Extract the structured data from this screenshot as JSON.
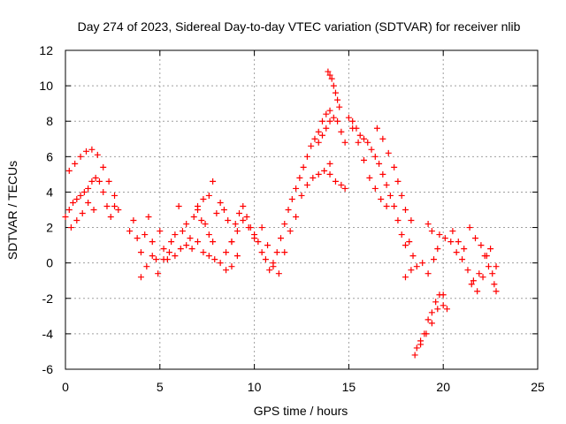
{
  "chart_data": {
    "type": "scatter",
    "title": "Day 274 of 2023, Sidereal Day-to-day VTEC variation (SDTVAR) for receiver nlib",
    "xlabel": "GPS time / hours",
    "ylabel": "SDTVAR / TECUs",
    "xlim": [
      0,
      25
    ],
    "ylim": [
      -6,
      12
    ],
    "xticks": [
      "0",
      "5",
      "10",
      "15",
      "20",
      "25"
    ],
    "yticks": [
      "-6",
      "-4",
      "-2",
      "0",
      "2",
      "4",
      "6",
      "8",
      "10",
      "12"
    ],
    "grid": true,
    "marker": "+",
    "color": "#ff0000",
    "series": [
      {
        "name": "SDTVAR",
        "x": [
          0.0,
          0.2,
          0.4,
          0.6,
          0.8,
          1.0,
          1.2,
          1.4,
          1.6,
          1.8,
          2.0,
          2.2,
          2.4,
          2.6,
          2.8,
          0.2,
          0.5,
          0.8,
          1.1,
          1.4,
          1.7,
          2.0,
          2.3,
          2.6,
          0.3,
          0.6,
          0.9,
          1.2,
          1.5,
          3.4,
          3.6,
          3.8,
          4.0,
          4.2,
          4.4,
          4.6,
          4.8,
          5.0,
          5.2,
          5.4,
          5.6,
          5.8,
          6.0,
          6.2,
          6.4,
          6.6,
          6.8,
          7.0,
          7.2,
          7.4,
          7.6,
          7.8,
          8.0,
          8.2,
          8.4,
          8.6,
          8.8,
          9.0,
          9.2,
          9.4,
          9.6,
          9.8,
          10.0,
          4.0,
          4.3,
          4.6,
          4.9,
          5.2,
          5.5,
          5.8,
          6.1,
          6.4,
          6.7,
          7.0,
          7.3,
          7.6,
          7.9,
          8.2,
          8.5,
          8.8,
          9.1,
          9.4,
          9.7,
          10.0,
          7.0,
          7.3,
          7.6,
          7.8,
          8.5,
          8.8,
          9.1,
          10.2,
          10.4,
          10.6,
          10.8,
          11.0,
          11.2,
          11.4,
          11.6,
          11.8,
          12.0,
          12.2,
          12.4,
          12.6,
          12.8,
          13.0,
          13.2,
          13.4,
          13.6,
          13.8,
          14.0,
          10.4,
          10.7,
          11.0,
          11.3,
          11.6,
          11.9,
          12.2,
          12.5,
          12.8,
          13.1,
          13.4,
          13.7,
          14.0,
          13.4,
          13.6,
          13.8,
          14.0,
          14.2,
          14.4,
          14.6,
          14.8,
          13.9,
          14.0,
          14.1,
          14.2,
          14.3,
          14.4,
          14.5,
          14.0,
          14.3,
          14.6,
          14.8,
          15.0,
          15.2,
          15.4,
          15.6,
          15.8,
          16.0,
          16.2,
          16.4,
          16.6,
          16.8,
          17.0,
          17.2,
          17.4,
          17.6,
          17.8,
          18.0,
          18.2,
          18.4,
          15.2,
          15.5,
          15.8,
          16.1,
          16.4,
          16.7,
          17.0,
          16.5,
          16.8,
          17.1,
          17.4,
          17.6,
          17.8,
          18.0,
          18.3,
          18.0,
          18.3,
          18.6,
          18.9,
          19.2,
          19.5,
          19.8,
          20.1,
          20.4,
          20.7,
          21.0,
          21.3,
          21.6,
          21.9,
          22.2,
          22.5,
          22.8,
          18.5,
          18.8,
          19.1,
          19.4,
          19.7,
          20.0,
          20.5,
          20.8,
          21.1,
          21.4,
          21.7,
          22.0,
          22.3,
          22.6,
          22.8,
          18.6,
          18.8,
          19.0,
          19.2,
          19.4,
          19.6,
          19.8,
          20.0,
          20.2,
          21.5,
          21.8,
          22.1,
          22.4,
          22.7,
          19.2,
          19.4,
          19.7
        ],
        "y": [
          2.6,
          3.0,
          3.4,
          3.6,
          3.8,
          4.0,
          4.2,
          4.6,
          4.8,
          4.6,
          4.0,
          3.2,
          2.6,
          3.2,
          3.0,
          5.2,
          5.6,
          6.0,
          6.3,
          6.4,
          6.1,
          5.4,
          4.6,
          3.8,
          2.0,
          2.4,
          2.8,
          3.4,
          3.0,
          1.8,
          2.4,
          1.4,
          0.6,
          1.6,
          2.6,
          1.2,
          0.2,
          1.8,
          0.8,
          0.2,
          1.2,
          1.6,
          3.2,
          1.8,
          2.2,
          1.4,
          2.6,
          3.0,
          2.4,
          2.2,
          1.6,
          1.2,
          2.8,
          3.4,
          3.0,
          2.4,
          1.2,
          2.2,
          2.8,
          3.2,
          2.6,
          2.0,
          1.6,
          -0.8,
          -0.2,
          0.4,
          -0.6,
          0.2,
          0.6,
          0.4,
          0.8,
          1.0,
          0.8,
          1.2,
          0.6,
          0.4,
          0.2,
          0.0,
          -0.4,
          1.2,
          1.8,
          2.4,
          2.0,
          1.4,
          3.2,
          3.6,
          3.8,
          4.6,
          0.6,
          -0.2,
          0.4,
          1.2,
          0.6,
          0.2,
          -0.4,
          -0.2,
          0.6,
          1.4,
          2.2,
          3.0,
          3.6,
          4.2,
          4.8,
          5.4,
          6.0,
          6.6,
          7.0,
          7.4,
          8.0,
          8.4,
          8.6,
          2.0,
          1.0,
          0.0,
          -0.6,
          0.6,
          1.8,
          2.6,
          3.8,
          4.4,
          4.8,
          5.0,
          5.2,
          5.6,
          6.8,
          7.2,
          7.6,
          8.0,
          8.2,
          8.0,
          7.4,
          6.8,
          10.8,
          10.6,
          10.4,
          10.0,
          9.6,
          9.2,
          8.8,
          5.0,
          4.6,
          4.4,
          4.2,
          8.2,
          8.0,
          7.6,
          7.2,
          7.0,
          6.8,
          6.4,
          6.0,
          5.6,
          5.0,
          4.4,
          3.8,
          3.2,
          2.4,
          1.6,
          1.0,
          1.2,
          0.4,
          7.6,
          6.8,
          5.8,
          4.8,
          4.2,
          3.6,
          3.2,
          7.6,
          7.0,
          6.2,
          5.4,
          4.6,
          3.8,
          3.0,
          2.4,
          -0.8,
          -0.4,
          -0.2,
          0.0,
          -0.6,
          0.2,
          1.6,
          1.4,
          1.2,
          0.6,
          0.2,
          -0.4,
          -1.0,
          -0.6,
          0.4,
          0.8,
          -0.2,
          -5.2,
          -4.6,
          -4.0,
          -3.4,
          -2.6,
          -1.8,
          1.8,
          1.2,
          0.8,
          2.0,
          1.4,
          1.0,
          0.4,
          -0.6,
          -1.6,
          -4.8,
          -4.4,
          -4.0,
          -3.2,
          -2.8,
          -2.2,
          -1.8,
          -2.4,
          -2.6,
          -1.2,
          -1.6,
          -0.8,
          -0.2,
          -1.2,
          2.2,
          1.8,
          0.8
        ]
      }
    ]
  }
}
